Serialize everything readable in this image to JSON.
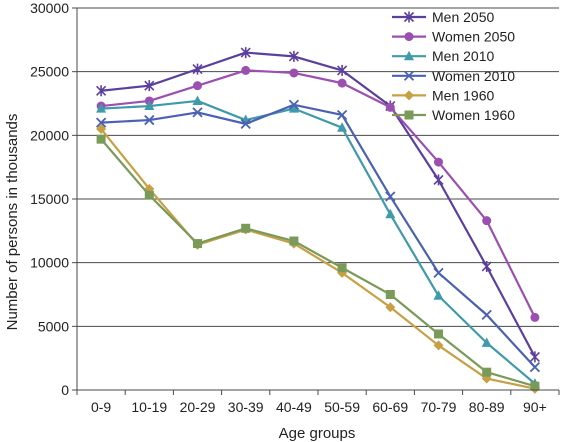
{
  "chart_data": {
    "type": "line",
    "title": "",
    "xlabel": "Age groups",
    "ylabel": "Number of persons in thousands",
    "categories": [
      "0-9",
      "10-19",
      "20-29",
      "30-39",
      "40-49",
      "50-59",
      "60-69",
      "70-79",
      "80-89",
      "90+"
    ],
    "ylim": [
      0,
      30000
    ],
    "yticks": [
      0,
      5000,
      10000,
      15000,
      20000,
      25000,
      30000
    ],
    "grid": "horizontal",
    "legend_position": "top-right",
    "series": [
      {
        "name": "Men 2050",
        "color": "#5b3f9e",
        "marker": "star",
        "values": [
          23500,
          23900,
          25200,
          26500,
          26200,
          25100,
          22300,
          16500,
          9700,
          2600
        ]
      },
      {
        "name": "Women 2050",
        "color": "#9b4fb0",
        "marker": "circle",
        "values": [
          22300,
          22700,
          23900,
          25100,
          24900,
          24100,
          22200,
          17900,
          13300,
          5700
        ]
      },
      {
        "name": "Men 2010",
        "color": "#3f9aaa",
        "marker": "triangle",
        "values": [
          22100,
          22300,
          22700,
          21200,
          22100,
          20600,
          13800,
          7400,
          3700,
          500
        ]
      },
      {
        "name": "Women 2010",
        "color": "#4b61b3",
        "marker": "x",
        "values": [
          21000,
          21200,
          21800,
          20900,
          22400,
          21600,
          15200,
          9200,
          5900,
          1800
        ]
      },
      {
        "name": "Men 1960",
        "color": "#c8a044",
        "marker": "diamond",
        "values": [
          20500,
          15800,
          11400,
          12600,
          11500,
          9200,
          6500,
          3500,
          900,
          100
        ]
      },
      {
        "name": "Women 1960",
        "color": "#7a9a5a",
        "marker": "square",
        "values": [
          19700,
          15300,
          11500,
          12700,
          11700,
          9600,
          7500,
          4400,
          1400,
          300
        ]
      }
    ]
  }
}
